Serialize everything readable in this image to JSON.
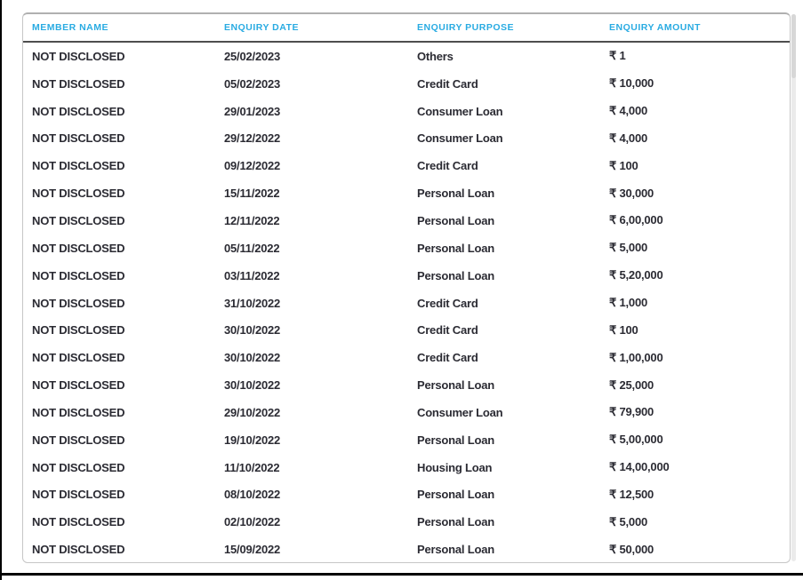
{
  "colors": {
    "header_text": "#29abe2",
    "body_text": "#2b2b33",
    "header_divider": "#4e4e4e",
    "card_border": "#c6c6c6",
    "frame_line": "#000000"
  },
  "table": {
    "columns": [
      {
        "key": "member_name",
        "label": "MEMBER NAME"
      },
      {
        "key": "enquiry_date",
        "label": "ENQUIRY DATE"
      },
      {
        "key": "enquiry_purpose",
        "label": "ENQUIRY PURPOSE"
      },
      {
        "key": "enquiry_amount",
        "label": "ENQUIRY AMOUNT"
      }
    ],
    "rows": [
      [
        "NOT DISCLOSED",
        "25/02/2023",
        "Others",
        "₹ 1"
      ],
      [
        "NOT DISCLOSED",
        "05/02/2023",
        "Credit Card",
        "₹ 10,000"
      ],
      [
        "NOT DISCLOSED",
        "29/01/2023",
        "Consumer Loan",
        "₹ 4,000"
      ],
      [
        "NOT DISCLOSED",
        "29/12/2022",
        "Consumer Loan",
        "₹ 4,000"
      ],
      [
        "NOT DISCLOSED",
        "09/12/2022",
        "Credit Card",
        "₹ 100"
      ],
      [
        "NOT DISCLOSED",
        "15/11/2022",
        "Personal Loan",
        "₹ 30,000"
      ],
      [
        "NOT DISCLOSED",
        "12/11/2022",
        "Personal Loan",
        "₹ 6,00,000"
      ],
      [
        "NOT DISCLOSED",
        "05/11/2022",
        "Personal Loan",
        "₹ 5,000"
      ],
      [
        "NOT DISCLOSED",
        "03/11/2022",
        "Personal Loan",
        "₹ 5,20,000"
      ],
      [
        "NOT DISCLOSED",
        "31/10/2022",
        "Credit Card",
        "₹ 1,000"
      ],
      [
        "NOT DISCLOSED",
        "30/10/2022",
        "Credit Card",
        "₹ 100"
      ],
      [
        "NOT DISCLOSED",
        "30/10/2022",
        "Credit Card",
        "₹ 1,00,000"
      ],
      [
        "NOT DISCLOSED",
        "30/10/2022",
        "Personal Loan",
        "₹ 25,000"
      ],
      [
        "NOT DISCLOSED",
        "29/10/2022",
        "Consumer Loan",
        "₹ 79,900"
      ],
      [
        "NOT DISCLOSED",
        "19/10/2022",
        "Personal Loan",
        "₹ 5,00,000"
      ],
      [
        "NOT DISCLOSED",
        "11/10/2022",
        "Housing Loan",
        "₹ 14,00,000"
      ],
      [
        "NOT DISCLOSED",
        "08/10/2022",
        "Personal Loan",
        "₹ 12,500"
      ],
      [
        "NOT DISCLOSED",
        "02/10/2022",
        "Personal Loan",
        "₹ 5,000"
      ],
      [
        "NOT DISCLOSED",
        "15/09/2022",
        "Personal Loan",
        "₹ 50,000"
      ]
    ]
  }
}
